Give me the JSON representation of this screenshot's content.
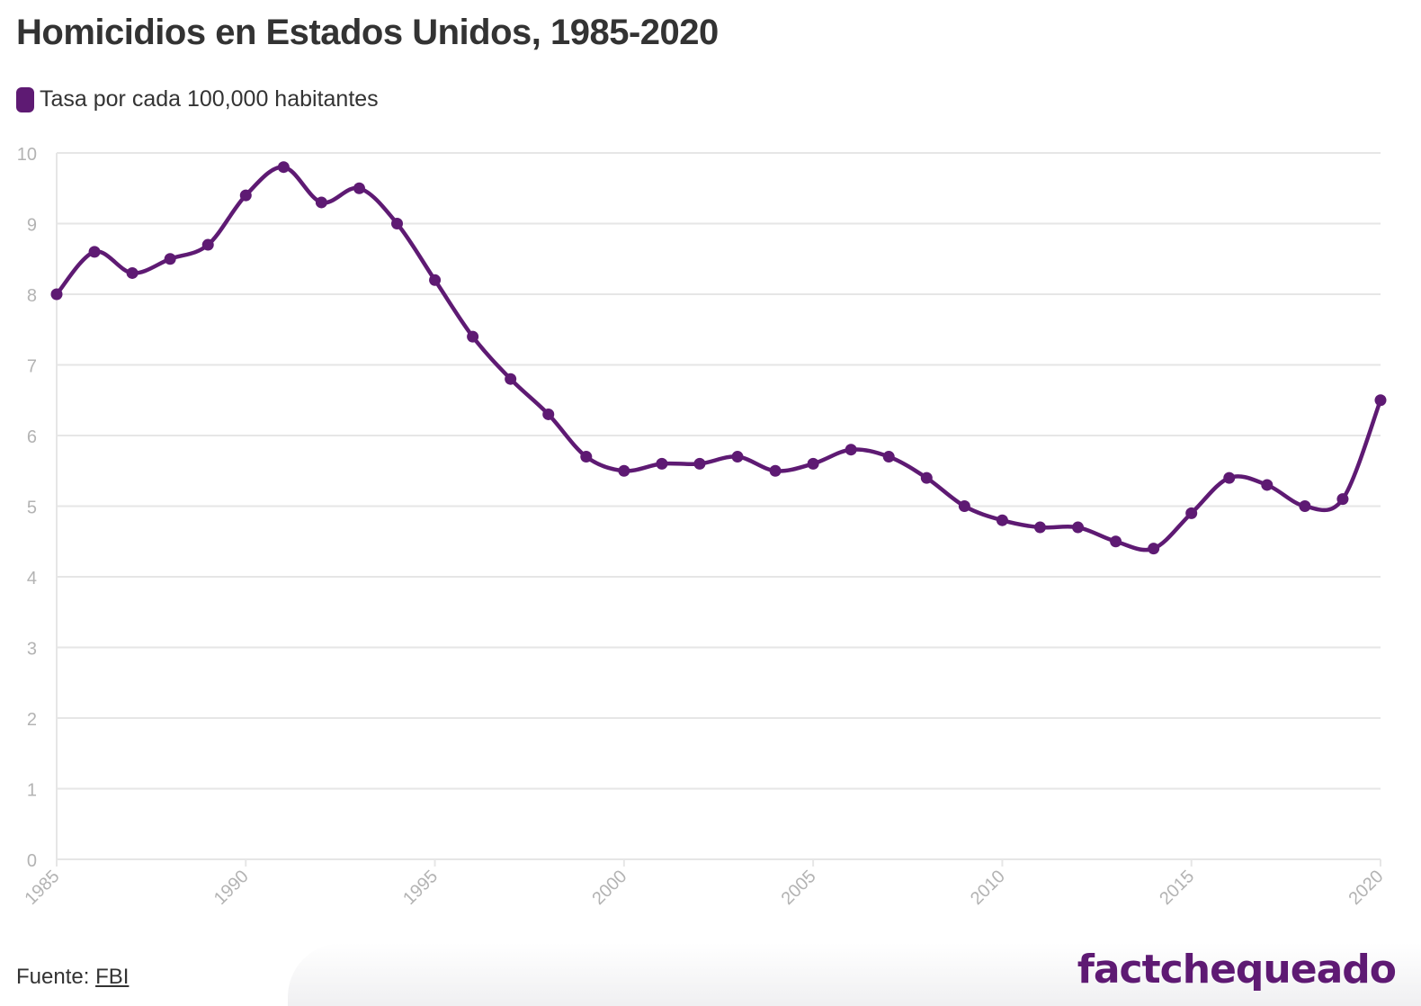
{
  "title": "Homicidios en Estados Unidos, 1985-2020",
  "legend": {
    "label": "Tasa por cada 100,000 habitantes"
  },
  "footer": {
    "source_label": "Fuente:",
    "source_link": "FBI"
  },
  "brand": "factchequeado",
  "colors": {
    "series": "#5e1a73",
    "grid": "#e6e6e6",
    "axis_text": "#b3b3b3",
    "title": "#333333"
  },
  "chart_data": {
    "type": "line",
    "title": "Homicidios en Estados Unidos, 1985-2020",
    "xlabel": "",
    "ylabel": "",
    "ylim": [
      0,
      10
    ],
    "xlim": [
      1985,
      2020
    ],
    "yticks": [
      0,
      1,
      2,
      3,
      4,
      5,
      6,
      7,
      8,
      9,
      10
    ],
    "xticks": [
      1985,
      1990,
      1995,
      2000,
      2005,
      2010,
      2015,
      2020
    ],
    "grid": true,
    "legend_position": "top-left",
    "series": [
      {
        "name": "Tasa por cada 100,000 habitantes",
        "color": "#5e1a73",
        "x": [
          1985,
          1986,
          1987,
          1988,
          1989,
          1990,
          1991,
          1992,
          1993,
          1994,
          1995,
          1996,
          1997,
          1998,
          1999,
          2000,
          2001,
          2002,
          2003,
          2004,
          2005,
          2006,
          2007,
          2008,
          2009,
          2010,
          2011,
          2012,
          2013,
          2014,
          2015,
          2016,
          2017,
          2018,
          2019,
          2020
        ],
        "values": [
          8.0,
          8.6,
          8.3,
          8.5,
          8.7,
          9.4,
          9.8,
          9.3,
          9.5,
          9.0,
          8.2,
          7.4,
          6.8,
          6.3,
          5.7,
          5.5,
          5.6,
          5.6,
          5.7,
          5.5,
          5.6,
          5.8,
          5.7,
          5.4,
          5.0,
          4.8,
          4.7,
          4.7,
          4.5,
          4.4,
          4.9,
          5.4,
          5.3,
          5.0,
          5.1,
          6.5
        ]
      }
    ]
  }
}
